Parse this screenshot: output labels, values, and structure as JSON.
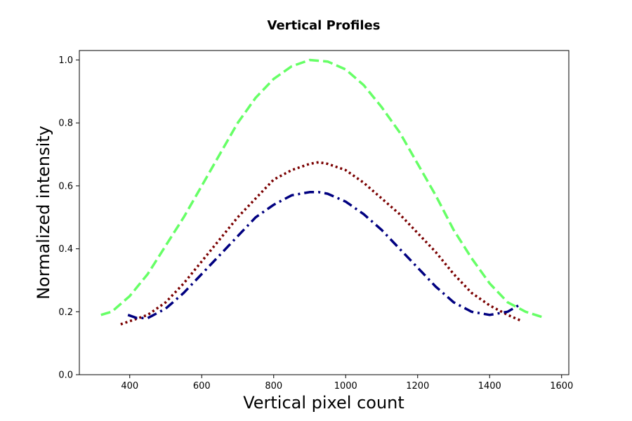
{
  "chart_data": {
    "type": "line",
    "title": "Vertical Profiles",
    "xlabel": "Vertical pixel count",
    "ylabel": "Normalized intensity",
    "xlim": [
      260,
      1620
    ],
    "ylim": [
      0.0,
      1.03
    ],
    "xticks": [
      400,
      600,
      800,
      1000,
      1200,
      1400,
      1600
    ],
    "xtick_labels": [
      "400",
      "600",
      "800",
      "1000",
      "1200",
      "1400",
      "1600"
    ],
    "yticks": [
      0.0,
      0.2,
      0.4,
      0.6,
      0.8,
      1.0
    ],
    "ytick_labels": [
      "0.0",
      "0.2",
      "0.4",
      "0.6",
      "0.8",
      "1.0"
    ],
    "grid": false,
    "series": [
      {
        "color": "#66ff66",
        "style": "dashed",
        "x": [
          320,
          350,
          400,
          450,
          500,
          550,
          600,
          650,
          700,
          750,
          800,
          850,
          900,
          950,
          1000,
          1050,
          1100,
          1150,
          1200,
          1250,
          1300,
          1350,
          1400,
          1450,
          1500,
          1555
        ],
        "y": [
          0.19,
          0.2,
          0.25,
          0.32,
          0.41,
          0.5,
          0.6,
          0.7,
          0.8,
          0.88,
          0.94,
          0.98,
          1.0,
          0.995,
          0.97,
          0.92,
          0.85,
          0.77,
          0.67,
          0.57,
          0.46,
          0.37,
          0.29,
          0.23,
          0.2,
          0.18
        ]
      },
      {
        "color": "#7a0000",
        "style": "dotted",
        "x": [
          375,
          400,
          450,
          500,
          550,
          600,
          650,
          700,
          750,
          800,
          850,
          900,
          925,
          950,
          1000,
          1050,
          1100,
          1150,
          1200,
          1250,
          1300,
          1350,
          1400,
          1450,
          1490
        ],
        "y": [
          0.16,
          0.17,
          0.19,
          0.23,
          0.29,
          0.36,
          0.43,
          0.5,
          0.56,
          0.62,
          0.65,
          0.67,
          0.675,
          0.67,
          0.65,
          0.61,
          0.56,
          0.51,
          0.45,
          0.39,
          0.32,
          0.26,
          0.22,
          0.19,
          0.17
        ]
      },
      {
        "color": "#000080",
        "style": "dashdot",
        "x": [
          395,
          420,
          450,
          500,
          550,
          600,
          650,
          700,
          750,
          800,
          850,
          900,
          925,
          950,
          1000,
          1050,
          1100,
          1150,
          1200,
          1250,
          1300,
          1350,
          1400,
          1450,
          1480
        ],
        "y": [
          0.19,
          0.18,
          0.18,
          0.21,
          0.26,
          0.32,
          0.38,
          0.44,
          0.5,
          0.54,
          0.57,
          0.58,
          0.58,
          0.575,
          0.55,
          0.51,
          0.46,
          0.4,
          0.34,
          0.28,
          0.23,
          0.2,
          0.19,
          0.2,
          0.22
        ]
      }
    ]
  }
}
